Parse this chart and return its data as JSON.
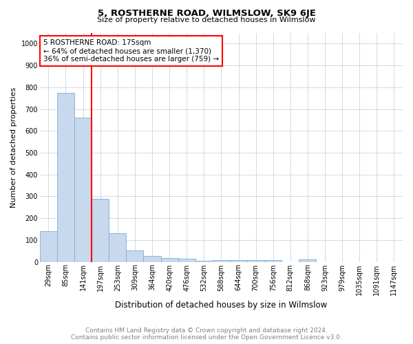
{
  "title": "5, ROSTHERNE ROAD, WILMSLOW, SK9 6JE",
  "subtitle": "Size of property relative to detached houses in Wilmslow",
  "xlabel": "Distribution of detached houses by size in Wilmslow",
  "ylabel": "Number of detached properties",
  "footer1": "Contains HM Land Registry data © Crown copyright and database right 2024.",
  "footer2": "Contains public sector information licensed under the Open Government Licence v3.0.",
  "categories": [
    "29sqm",
    "85sqm",
    "141sqm",
    "197sqm",
    "253sqm",
    "309sqm",
    "364sqm",
    "420sqm",
    "476sqm",
    "532sqm",
    "588sqm",
    "644sqm",
    "700sqm",
    "756sqm",
    "812sqm",
    "868sqm",
    "923sqm",
    "979sqm",
    "1035sqm",
    "1091sqm",
    "1147sqm"
  ],
  "values": [
    140,
    775,
    660,
    290,
    130,
    52,
    28,
    18,
    14,
    5,
    8,
    8,
    8,
    7,
    0,
    10,
    0,
    0,
    0,
    0,
    0
  ],
  "bar_color": "#c8d8ed",
  "bar_edge_color": "#7aafd4",
  "vline_color": "red",
  "vline_pos": 2.5,
  "annotation_text_line1": "5 ROSTHERNE ROAD: 175sqm",
  "annotation_text_line2": "← 64% of detached houses are smaller (1,370)",
  "annotation_text_line3": "36% of semi-detached houses are larger (759) →",
  "annotation_box_color": "white",
  "annotation_box_edge_color": "red",
  "ylim": [
    0,
    1050
  ],
  "yticks": [
    0,
    100,
    200,
    300,
    400,
    500,
    600,
    700,
    800,
    900,
    1000
  ],
  "bg_color": "white",
  "grid_color": "#d0d8e8",
  "title_fontsize": 9.5,
  "subtitle_fontsize": 8,
  "tick_fontsize": 7,
  "ylabel_fontsize": 8,
  "xlabel_fontsize": 8.5,
  "footer_fontsize": 6.5
}
